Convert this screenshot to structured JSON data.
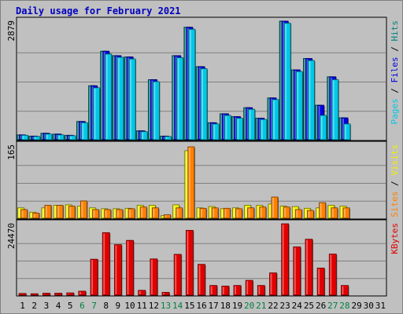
{
  "title": "Daily usage for February 2021",
  "chart_data": {
    "type": "bar",
    "title": "Daily usage for February 2021",
    "categories": [
      "1",
      "2",
      "3",
      "4",
      "5",
      "6",
      "7",
      "8",
      "9",
      "10",
      "11",
      "12",
      "13",
      "14",
      "15",
      "16",
      "17",
      "18",
      "19",
      "20",
      "21",
      "22",
      "23",
      "24",
      "25",
      "26",
      "27",
      "28",
      "29",
      "30",
      "31"
    ],
    "weekend_days": [
      "6",
      "7",
      "13",
      "14",
      "20",
      "21",
      "27",
      "28"
    ],
    "panels": [
      {
        "name": "hits-files-pages",
        "max_label": "2879",
        "ylim": [
          0,
          2879
        ],
        "legend": [
          {
            "text": "Pages",
            "color": "#00c8e8"
          },
          {
            "text": " / ",
            "color": "#000000"
          },
          {
            "text": "Files",
            "color": "#0000e0"
          },
          {
            "text": " / ",
            "color": "#000000"
          },
          {
            "text": "Hits",
            "color": "#008080"
          }
        ],
        "series": [
          {
            "name": "Hits",
            "color": "#008080",
            "values": [
              120,
              90,
              160,
              140,
              110,
              450,
              1330,
              2180,
              2070,
              2040,
              220,
              1480,
              90,
              2070,
              2770,
              1800,
              420,
              640,
              570,
              790,
              530,
              1030,
              2920,
              1720,
              2000,
              850,
              1550,
              540,
              0,
              0,
              0
            ]
          },
          {
            "name": "Files",
            "color": "#0000e0",
            "values": [
              120,
              90,
              160,
              140,
              110,
              450,
              1330,
              2180,
              2070,
              2040,
              220,
              1480,
              90,
              2070,
              2770,
              1800,
              420,
              640,
              570,
              790,
              530,
              1030,
              2920,
              1720,
              2000,
              850,
              1550,
              540,
              0,
              0,
              0
            ]
          },
          {
            "name": "Pages",
            "color": "#00c8e8",
            "values": [
              110,
              80,
              140,
              120,
              100,
              420,
              1280,
              2110,
              2030,
              1990,
              200,
              1430,
              80,
              2020,
              2720,
              1750,
              390,
              600,
              530,
              750,
              500,
              990,
              2870,
              1680,
              1950,
              600,
              1480,
              390,
              0,
              0,
              0
            ]
          }
        ]
      },
      {
        "name": "visits-sites",
        "max_label": "165",
        "ylim": [
          0,
          165
        ],
        "legend": [
          {
            "text": "Sites",
            "color": "#ff8000"
          },
          {
            "text": " / ",
            "color": "#000000"
          },
          {
            "text": "Visits",
            "color": "#f0f000"
          }
        ],
        "series": [
          {
            "name": "Visits",
            "color": "#f0f000",
            "values": [
              24,
              14,
              24,
              30,
              31,
              28,
              24,
              22,
              22,
              23,
              30,
              30,
              6,
              31,
              156,
              24,
              27,
              22,
              24,
              30,
              30,
              33,
              28,
              27,
              23,
              24,
              30,
              28,
              0,
              0,
              0
            ]
          },
          {
            "name": "Sites",
            "color": "#ff8000",
            "values": [
              20,
              12,
              30,
              30,
              28,
              40,
              20,
              20,
              20,
              22,
              26,
              24,
              8,
              24,
              165,
              23,
              24,
              23,
              22,
              24,
              26,
              49,
              26,
              20,
              18,
              36,
              24,
              24,
              0,
              0,
              0
            ]
          }
        ]
      },
      {
        "name": "kbytes",
        "max_label": "24470",
        "ylim": [
          0,
          24470
        ],
        "legend": [
          {
            "text": "KBytes",
            "color": "#e00000"
          }
        ],
        "series": [
          {
            "name": "KBytes",
            "color": "#e00000",
            "values": [
              600,
              500,
              700,
              700,
              800,
              1400,
              12600,
              21900,
              17700,
              19200,
              1700,
              12700,
              1000,
              14300,
              22700,
              10800,
              3400,
              3200,
              3400,
              5200,
              3400,
              7800,
              25000,
              16900,
              19600,
              9500,
              14400,
              3400,
              0,
              0,
              0
            ]
          }
        ]
      }
    ]
  }
}
